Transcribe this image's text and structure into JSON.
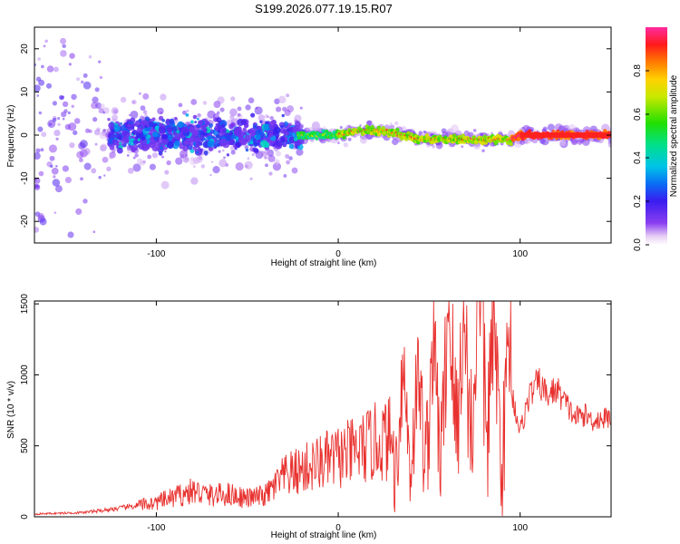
{
  "figure": {
    "title": "S199.2026.077.19.15.R07"
  },
  "chart_data": [
    {
      "type": "heatmap",
      "name": "spectrogram",
      "xlabel": "Height of straight line (km)",
      "ylabel": "Frequency (Hz)",
      "xlim": [
        -167,
        150
      ],
      "ylim": [
        -25,
        25
      ],
      "xticks": [
        -100,
        0,
        100
      ],
      "yticks": [
        -20,
        -10,
        0,
        10,
        20
      ],
      "colorbar": {
        "label": "Normalized spectral amplitude",
        "range": [
          0.0,
          1.0
        ],
        "ticks": [
          0.0,
          0.2,
          0.4,
          0.6,
          0.8
        ]
      },
      "description_regions": [
        {
          "x_range": [
            -167,
            -130
          ],
          "freq_spread": 24,
          "amplitude": 0.15
        },
        {
          "x_range": [
            -130,
            -20
          ],
          "freq_spread": 10,
          "amplitude": 0.3
        },
        {
          "x_range": [
            -20,
            150
          ],
          "freq_spread": 2,
          "amplitude": 0.9
        }
      ],
      "ridge": {
        "x": [
          -20,
          -10,
          0,
          10,
          25,
          35,
          45,
          60,
          80,
          95,
          100,
          150
        ],
        "freq": [
          0,
          0,
          0,
          1,
          1,
          0,
          -1,
          -1,
          -1,
          -1,
          0,
          0
        ]
      }
    },
    {
      "type": "line",
      "name": "snr",
      "xlabel": "Height of straight line (km)",
      "ylabel": "SNR (10 * v/v)",
      "xlim": [
        -167,
        150
      ],
      "ylim": [
        0,
        1520
      ],
      "xticks": [
        -100,
        0,
        100
      ],
      "yticks": [
        0,
        500,
        1000,
        1500
      ],
      "color": "#e8322f",
      "series": [
        {
          "name": "SNR",
          "x": [
            -167,
            -140,
            -120,
            -100,
            -90,
            -80,
            -70,
            -60,
            -50,
            -40,
            -30,
            -20,
            -10,
            0,
            10,
            20,
            30,
            35,
            40,
            45,
            50,
            55,
            60,
            65,
            70,
            75,
            80,
            85,
            90,
            95,
            100,
            105,
            110,
            115,
            120,
            125,
            130,
            135,
            140,
            145,
            150
          ],
          "y": [
            20,
            30,
            60,
            100,
            140,
            180,
            150,
            160,
            130,
            150,
            280,
            330,
            380,
            420,
            460,
            520,
            560,
            700,
            720,
            650,
            850,
            780,
            1000,
            1100,
            900,
            1200,
            1300,
            900,
            800,
            900,
            600,
            850,
            950,
            850,
            900,
            800,
            700,
            720,
            680,
            690,
            700
          ]
        }
      ]
    }
  ]
}
